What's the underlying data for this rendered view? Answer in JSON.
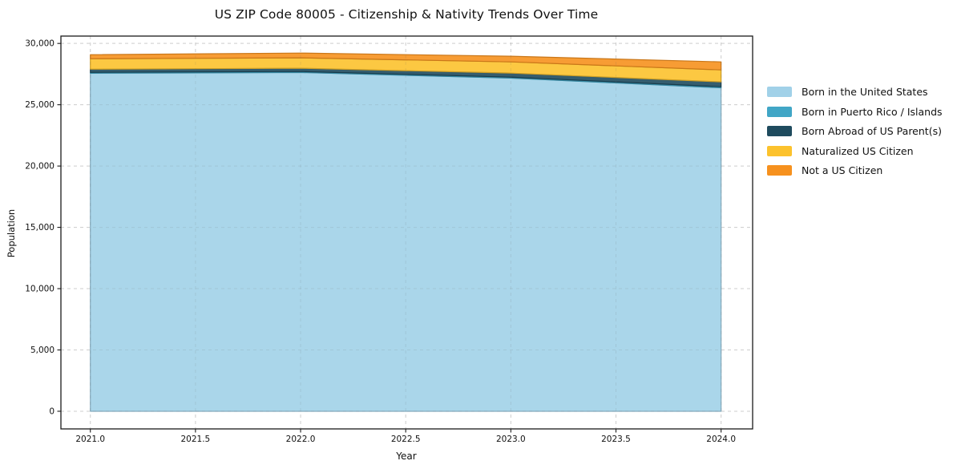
{
  "figure": {
    "background": "#ffffff",
    "spine_color": "#1a1a1a",
    "grid_color": "#dcdcdc",
    "text_color": "#111111"
  },
  "chart_data": {
    "type": "area",
    "stacked": true,
    "title": "US ZIP Code 80005 - Citizenship & Nativity Trends Over Time",
    "xlabel": "Year",
    "ylabel": "Population",
    "x": [
      2021,
      2022,
      2023,
      2024
    ],
    "series": [
      {
        "name": "Born in the United States",
        "color": "#A1D1E8",
        "values": [
          27570,
          27630,
          27170,
          26380
        ]
      },
      {
        "name": "Born in Puerto Rico / Islands",
        "color": "#41A6C6",
        "values": [
          70,
          80,
          80,
          90
        ]
      },
      {
        "name": "Born Abroad of US Parent(s)",
        "color": "#1F4B5E",
        "values": [
          260,
          265,
          330,
          395
        ]
      },
      {
        "name": "Naturalized US Citizen",
        "color": "#FCC22D",
        "values": [
          850,
          850,
          915,
          975
        ]
      },
      {
        "name": "Not a US Citizen",
        "color": "#F6911E",
        "values": [
          330,
          390,
          460,
          655
        ]
      }
    ],
    "stacked_totals": [
      29080,
      29215,
      28955,
      28495
    ],
    "xlim": [
      2020.86,
      2024.15
    ],
    "ylim": [
      -1440,
      30600
    ],
    "xticks": {
      "values": [
        2021.0,
        2021.5,
        2022.0,
        2022.5,
        2023.0,
        2023.5,
        2024.0
      ],
      "labels": [
        "2021.0",
        "2021.5",
        "2022.0",
        "2022.5",
        "2023.0",
        "2023.5",
        "2024.0"
      ]
    },
    "yticks": {
      "values": [
        0,
        5000,
        10000,
        15000,
        20000,
        25000,
        30000
      ],
      "labels": [
        "0",
        "5,000",
        "10,000",
        "15,000",
        "20,000",
        "25,000",
        "30,000"
      ]
    },
    "grid": true,
    "legend_position": "right-of-plot-upper"
  }
}
